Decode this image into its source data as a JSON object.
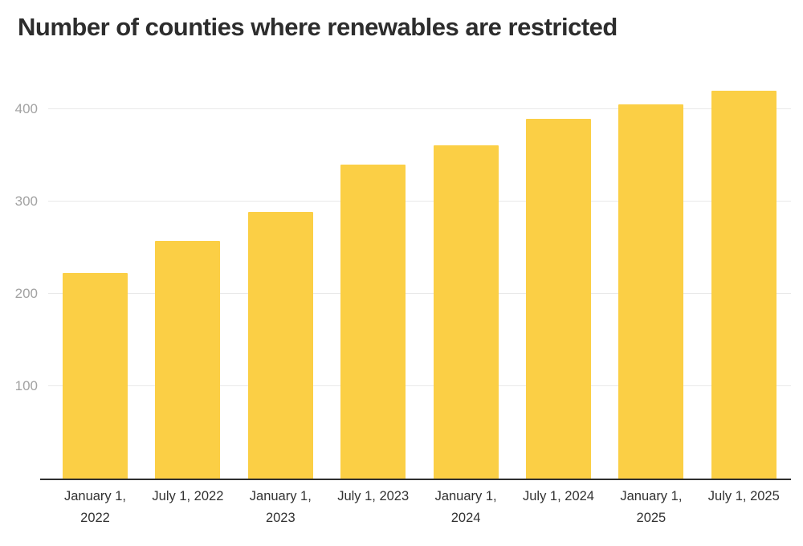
{
  "chart_data": {
    "type": "bar",
    "title": "Number of counties where renewables are restricted",
    "categories": [
      "January 1, 2022",
      "July 1, 2022",
      "January 1, 2023",
      "July 1, 2023",
      "January 1, 2024",
      "July 1, 2024",
      "January 1, 2025",
      "July 1, 2025"
    ],
    "values": [
      223,
      257,
      289,
      340,
      361,
      390,
      405,
      420
    ],
    "xlabel": "",
    "ylabel": "",
    "ylim": [
      0,
      440
    ],
    "yticks": [
      100,
      200,
      300,
      400
    ],
    "grid": true,
    "legend": "none",
    "bar_color": "#FBCF45",
    "colors": {
      "title": "#2D2D2D",
      "ytick_label": "#A2A2A2",
      "xtick_label": "#323232",
      "gridline": "#E9E9E9",
      "axis_line": "#2F2F2F",
      "background": "#FFFFFF"
    }
  }
}
